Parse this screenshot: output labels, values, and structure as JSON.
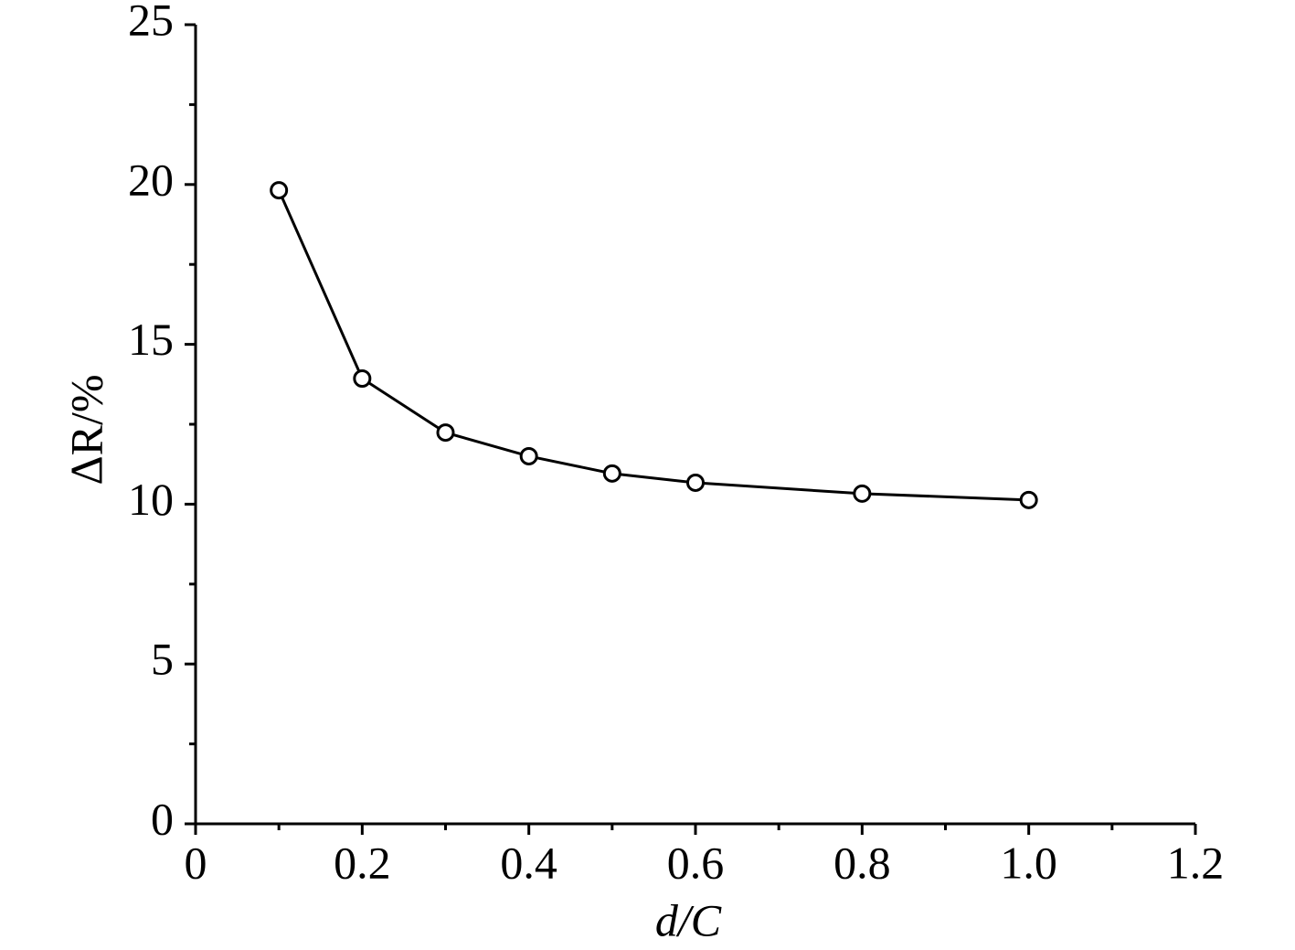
{
  "chart_data": {
    "type": "line",
    "x_label": "d/C",
    "y_label": "ΔR/%",
    "x": [
      0.1,
      0.2,
      0.3,
      0.4,
      0.5,
      0.6,
      0.8,
      1.0
    ],
    "values": [
      19.82,
      13.93,
      12.24,
      11.5,
      10.96,
      10.67,
      10.33,
      10.13
    ],
    "color": "#000000",
    "marker": "open-circle",
    "xlim": [
      0,
      1.2
    ],
    "ylim": [
      0,
      25
    ],
    "xticks": [
      0,
      0.2,
      0.4,
      0.6,
      0.8,
      {
        "value": 1,
        "label": "1.0"
      },
      1.2
    ],
    "xminorticks": [
      0.1,
      0.3,
      0.5,
      0.7,
      0.9,
      1.1
    ],
    "yticks": [
      0,
      5,
      10,
      15,
      20,
      25
    ],
    "yminorticks": [
      2.5,
      7.5,
      12.5,
      17.5,
      22.5
    ],
    "grid": false
  }
}
